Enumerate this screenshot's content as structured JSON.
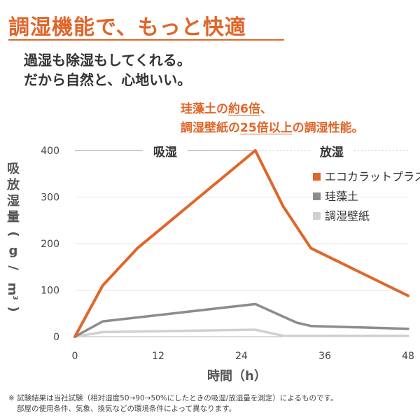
{
  "headline": "調湿機能で、もっと快適",
  "subcopy": [
    "過湿も除湿もしてくれる。",
    "だから自然と、心地いい。"
  ],
  "claim": {
    "line1_prefix": "珪藻土の",
    "line1_highlight": "約6倍",
    "line1_suffix": "、",
    "line2_prefix": "調湿壁紙の",
    "line2_highlight": "25倍以上",
    "line2_suffix": "の調湿性能。"
  },
  "footnote": [
    "※ 試験結果は当社試験（相対湿度50→90→50%にしたときの吸湿/放湿量を測定）によるものです。",
    "部屋の使用条件、気象、換気などの環境条件によって異なります。"
  ],
  "colors": {
    "accent": "#e0662a",
    "diatom": "#8c8c8c",
    "wallpaper": "#d0d0d0"
  },
  "chart_data": {
    "type": "line",
    "xlabel": "時間（h）",
    "ylabel_chars": [
      "吸",
      "放",
      "湿",
      "量"
    ],
    "ylabel_unit": [
      "(",
      "g",
      "/",
      "m",
      ")"
    ],
    "ylabel_unit_sup": "3",
    "xlim": [
      0,
      48
    ],
    "ylim": [
      0,
      400
    ],
    "xticks": [
      0,
      12,
      24,
      36,
      48
    ],
    "yticks": [
      0,
      100,
      200,
      300,
      400
    ],
    "phase_labels": [
      {
        "label": "吸湿",
        "from": 0,
        "to": 26,
        "style": "solid"
      },
      {
        "label": "放湿",
        "from": 26,
        "to": 48,
        "style": "dotted"
      }
    ],
    "series": [
      {
        "name": "エコカラットプラス",
        "color": "#e0662a",
        "x": [
          0,
          4,
          9,
          26,
          30,
          34,
          48
        ],
        "y": [
          0,
          110,
          190,
          400,
          280,
          190,
          88
        ]
      },
      {
        "name": "珪藻土",
        "color": "#8c8c8c",
        "x": [
          0,
          4,
          26,
          32,
          34,
          48
        ],
        "y": [
          0,
          33,
          70,
          30,
          23,
          17
        ]
      },
      {
        "name": "調湿壁紙",
        "color": "#d0d0d0",
        "x": [
          0,
          4,
          26,
          30,
          48
        ],
        "y": [
          0,
          10,
          15,
          2,
          2
        ]
      }
    ]
  }
}
